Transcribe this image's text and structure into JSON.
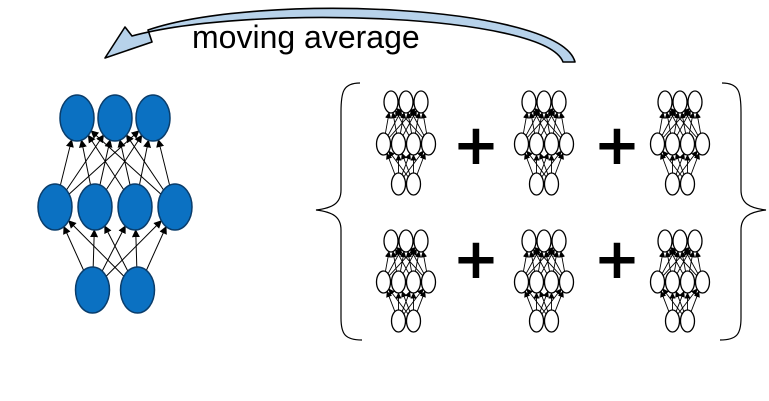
{
  "arrow_label": "moving average",
  "plus_sign": "+",
  "colors": {
    "node_fill": "#0b71c2",
    "node_stroke": "#0a3d6b",
    "arrow_fill": "#b7d2ea",
    "arrow_stroke": "#000000",
    "line": "#000000",
    "text": "#000000"
  },
  "network": {
    "layers": [
      2,
      4,
      3
    ],
    "connectivity": "fully-connected"
  },
  "ensemble": {
    "rows": 2,
    "networks_per_row": 3,
    "bracket": "curly-braces"
  }
}
